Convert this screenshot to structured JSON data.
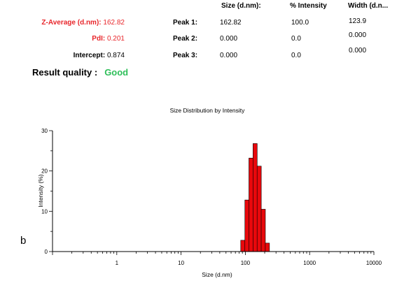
{
  "header": {
    "size_col": "Size (d.nm):",
    "intensity_col": "% Intensity",
    "width_col": "Width (d.n..."
  },
  "summary": {
    "z_average_label": "Z-Average (d.nm):",
    "z_average_value": "162.82",
    "pdi_label": "PdI:",
    "pdi_value": "0.201",
    "intercept_label": "Intercept:",
    "intercept_value": "0.874",
    "quality_label": "Result quality :",
    "quality_value": "Good"
  },
  "peaks": [
    {
      "label": "Peak 1:",
      "size": "162.82",
      "intensity": "100.0",
      "width": "123.9"
    },
    {
      "label": "Peak 2:",
      "size": "0.000",
      "intensity": "0.0",
      "width": "0.000"
    },
    {
      "label": "Peak 3:",
      "size": "0.000",
      "intensity": "0.0",
      "width": "0.000"
    }
  ],
  "panel_letter": "b",
  "colors": {
    "bar": "#e8080c",
    "good": "#2fbf5a",
    "red_text": "#e8262b"
  },
  "chart_data": {
    "type": "bar",
    "title": "Size Distribution by Intensity",
    "xlabel": "Size (d.nm)",
    "ylabel": "Intensity (%)",
    "x_scale": "log",
    "xlim": [
      0.1,
      10000
    ],
    "ylim": [
      0,
      30
    ],
    "x_ticks": [
      1,
      10,
      100,
      1000,
      10000
    ],
    "y_ticks": [
      0,
      10,
      20,
      30
    ],
    "grid": false,
    "bins": [
      {
        "x": 91.3,
        "value": 2.8
      },
      {
        "x": 106,
        "value": 12.8
      },
      {
        "x": 122.4,
        "value": 23.2
      },
      {
        "x": 141.8,
        "value": 26.8
      },
      {
        "x": 164.2,
        "value": 21.2
      },
      {
        "x": 190.1,
        "value": 10.5
      },
      {
        "x": 220.2,
        "value": 2.1
      }
    ]
  }
}
